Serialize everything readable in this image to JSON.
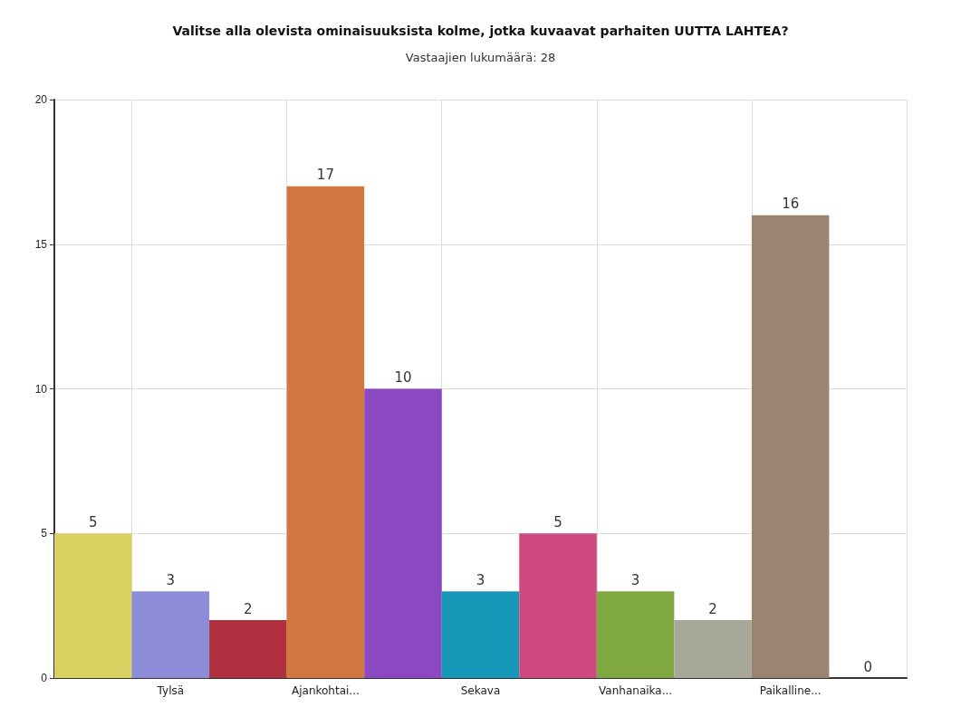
{
  "chart_data": {
    "type": "bar",
    "title": "Valitse alla olevista ominaisuuksista kolme, jotka kuvaavat parhaiten UUTTA LAHTEA?",
    "subtitle": "Vastaajien lukumäärä: 28",
    "categories": [
      null,
      "Tylsä",
      null,
      "Ajankohtai...",
      null,
      "Sekava",
      null,
      "Vanhanaika...",
      null,
      "Paikalline...",
      null
    ],
    "values": [
      5,
      3,
      2,
      17,
      10,
      3,
      5,
      3,
      2,
      16,
      0
    ],
    "colors": [
      "#d8d060",
      "#8c8cd8",
      "#b03040",
      "#d07840",
      "#8c48c0",
      "#1898b8",
      "#d04880",
      "#80a840",
      "#a8a898",
      "#9c8470",
      "#888888"
    ],
    "ylim": [
      0,
      20
    ],
    "yticks": [
      0,
      5,
      10,
      15,
      20
    ],
    "grid": true,
    "data_labels": true
  }
}
